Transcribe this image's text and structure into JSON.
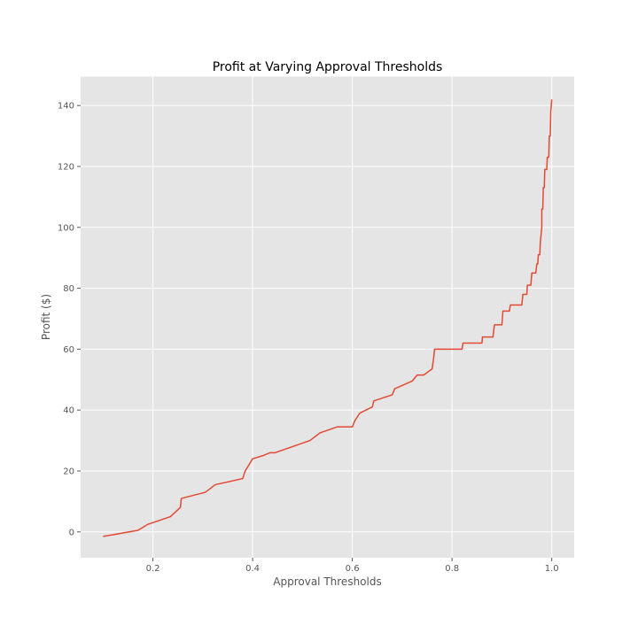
{
  "chart_data": {
    "type": "line",
    "title": "Profit at Varying Approval Thresholds",
    "xlabel": "Approval Thresholds",
    "ylabel": "Profit ($)",
    "xlim": [
      0.055,
      1.045
    ],
    "ylim": [
      -8.5,
      149.5
    ],
    "xticks": [
      0.2,
      0.4,
      0.6,
      0.8,
      1.0
    ],
    "xtick_labels": [
      "0.2",
      "0.4",
      "0.6",
      "0.8",
      "1.0"
    ],
    "yticks": [
      0,
      20,
      40,
      60,
      80,
      100,
      120,
      140
    ],
    "ytick_labels": [
      "0",
      "20",
      "40",
      "60",
      "80",
      "100",
      "120",
      "140"
    ],
    "grid": true,
    "style": "ggplot",
    "background_color": "#e5e5e5",
    "grid_color": "#ffffff",
    "series": [
      {
        "color": "#e24a33",
        "x": [
          0.1,
          0.17,
          0.19,
          0.235,
          0.255,
          0.257,
          0.305,
          0.325,
          0.38,
          0.385,
          0.4,
          0.42,
          0.435,
          0.445,
          0.48,
          0.515,
          0.535,
          0.57,
          0.6,
          0.605,
          0.615,
          0.64,
          0.643,
          0.68,
          0.685,
          0.72,
          0.73,
          0.743,
          0.76,
          0.763,
          0.765,
          0.82,
          0.822,
          0.86,
          0.861,
          0.882,
          0.885,
          0.9,
          0.902,
          0.915,
          0.917,
          0.94,
          0.942,
          0.95,
          0.951,
          0.958,
          0.96,
          0.968,
          0.97,
          0.972,
          0.973,
          0.976,
          0.977,
          0.98,
          0.98,
          0.982,
          0.983,
          0.985,
          0.986,
          0.99,
          0.991,
          0.994,
          0.995,
          0.997,
          0.998,
          1.0
        ],
        "y": [
          -1.5,
          0.5,
          2.5,
          5,
          8,
          11,
          13,
          15.5,
          17.5,
          20,
          24,
          25,
          26,
          26,
          28,
          30,
          32.5,
          34.5,
          34.5,
          36.5,
          39,
          41,
          43,
          45,
          47,
          49.5,
          51.5,
          51.5,
          53.5,
          57,
          60,
          60,
          62,
          62,
          64,
          64,
          68,
          68,
          72.5,
          72.5,
          74.5,
          74.5,
          78,
          78,
          81,
          81,
          85,
          85,
          88,
          88,
          91,
          91,
          95,
          100,
          106,
          106,
          113,
          113,
          119,
          119,
          123,
          123,
          130,
          130,
          138,
          142
        ]
      }
    ]
  }
}
